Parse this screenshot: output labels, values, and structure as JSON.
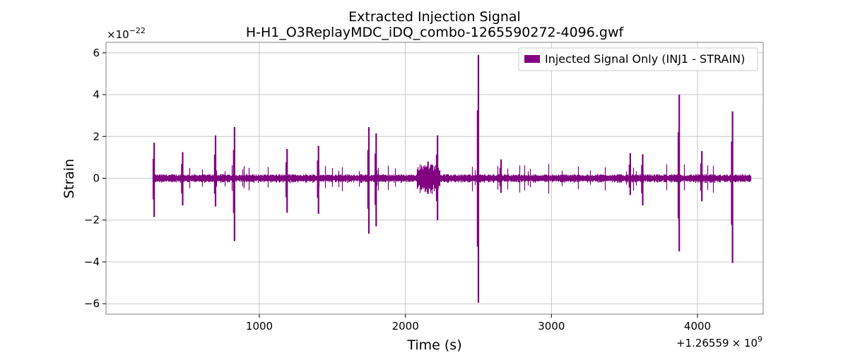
{
  "chart_data": {
    "type": "line",
    "title": "Extracted Injection Signal",
    "subtitle": "H-H1_O3ReplayMDC_iDQ_combo-1265590272-4096.gwf",
    "xlabel": "Time (s)",
    "ylabel": "Strain",
    "x_offset_label": "+1.26559",
    "x_offset_exp_base": "× 10",
    "x_offset_exp": "9",
    "y_scale_label": "×10",
    "y_scale_exp": "−22",
    "xlim": [
      -50,
      4450
    ],
    "ylim": [
      -6.5,
      6.5
    ],
    "x_ticks": [
      1000,
      2000,
      3000,
      4000
    ],
    "x_tick_labels": [
      "1000",
      "2000",
      "3000",
      "4000"
    ],
    "y_ticks": [
      -6,
      -4,
      -2,
      0,
      2,
      4,
      6
    ],
    "y_tick_labels": [
      "−6",
      "−4",
      "−2",
      "0",
      "2",
      "4",
      "6"
    ],
    "grid": true,
    "legend_position": "top-right",
    "series": [
      {
        "name": "Injected Signal Only (INJ1 - STRAIN)",
        "color": "#800080",
        "x_range": [
          272,
          4368
        ],
        "baseline_amplitude": 0.15,
        "bursts": [
          {
            "x": 280,
            "hi": 1.7,
            "lo": -1.85
          },
          {
            "x": 475,
            "hi": 1.25,
            "lo": -1.3
          },
          {
            "x": 700,
            "hi": 2.05,
            "lo": -1.35
          },
          {
            "x": 830,
            "hi": 2.45,
            "lo": -3.0
          },
          {
            "x": 1190,
            "hi": 1.4,
            "lo": -1.65
          },
          {
            "x": 1405,
            "hi": 1.55,
            "lo": -1.7
          },
          {
            "x": 1750,
            "hi": 2.45,
            "lo": -2.65
          },
          {
            "x": 1800,
            "hi": 2.15,
            "lo": -2.3
          },
          {
            "x": 2155,
            "hi": 0.8,
            "lo": -0.75
          },
          {
            "x": 2220,
            "hi": 2.05,
            "lo": -2.0
          },
          {
            "x": 2500,
            "hi": 5.9,
            "lo": -5.95
          },
          {
            "x": 2655,
            "hi": 0.9,
            "lo": -0.7
          },
          {
            "x": 3540,
            "hi": 1.2,
            "lo": -0.8
          },
          {
            "x": 3625,
            "hi": 1.15,
            "lo": -1.3
          },
          {
            "x": 3875,
            "hi": 4.0,
            "lo": -3.5
          },
          {
            "x": 4030,
            "hi": 1.3,
            "lo": -1.1
          },
          {
            "x": 4240,
            "hi": 3.2,
            "lo": -4.05
          }
        ]
      }
    ]
  }
}
